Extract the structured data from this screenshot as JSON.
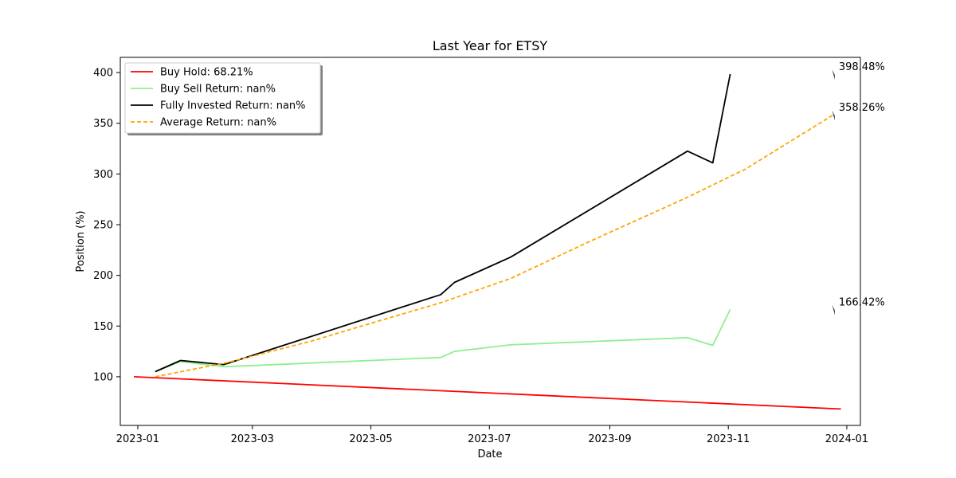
{
  "chart_data": {
    "type": "line",
    "title": "Last Year for ETSY",
    "xlabel": "Date",
    "ylabel": "Position (%)",
    "xlim": [
      "2022-12-23",
      "2024-01-08"
    ],
    "ylim": [
      52,
      415
    ],
    "x_ticks": [
      "2023-01",
      "2023-03",
      "2023-05",
      "2023-07",
      "2023-09",
      "2023-11",
      "2024-01"
    ],
    "y_ticks": [
      100,
      150,
      200,
      250,
      300,
      350,
      400
    ],
    "grid": false,
    "legend_location": "upper left",
    "series": [
      {
        "name": "Buy Hold: 68.21%",
        "color": "#ff0000",
        "style": "solid",
        "x": [
          "2022-12-30",
          "2023-12-29"
        ],
        "values": [
          100,
          68.21
        ]
      },
      {
        "name": "Buy Sell Return: nan%",
        "color": "#90ee90",
        "style": "solid",
        "x": [
          "2023-01-10",
          "2023-01-23",
          "2023-02-14",
          "2023-02-16",
          "2023-06-06",
          "2023-06-13",
          "2023-07-12",
          "2023-10-11",
          "2023-10-24",
          "2023-11-02"
        ],
        "values": [
          105,
          115,
          110,
          110,
          119,
          125,
          131.5,
          138.5,
          131,
          166.42
        ]
      },
      {
        "name": "Fully Invested Return: nan%",
        "color": "#000000",
        "style": "solid",
        "x": [
          "2023-01-10",
          "2023-01-23",
          "2023-02-14",
          "2023-02-16",
          "2023-06-06",
          "2023-06-13",
          "2023-07-12",
          "2023-10-11",
          "2023-10-24",
          "2023-11-02"
        ],
        "values": [
          105,
          116,
          112,
          113,
          181,
          193,
          218,
          322.5,
          311,
          398.48
        ]
      },
      {
        "name": "Average Return: nan%",
        "color": "#ffa500",
        "style": "dashed",
        "x": [
          "2023-01-10",
          "2023-02-16",
          "2023-03-31",
          "2023-05-05",
          "2023-06-06",
          "2023-07-12",
          "2023-08-20",
          "2023-10-11",
          "2023-11-10",
          "2023-12-25"
        ],
        "values": [
          100,
          114,
          135,
          155,
          173,
          197,
          232,
          277,
          305,
          358.26
        ]
      }
    ],
    "annotations": [
      {
        "text": "398.48%",
        "x": "2023-12-25",
        "y": 398.48
      },
      {
        "text": "358.26%",
        "x": "2023-12-25",
        "y": 358.26
      },
      {
        "text": "166.42%",
        "x": "2023-12-25",
        "y": 166.42
      }
    ]
  }
}
